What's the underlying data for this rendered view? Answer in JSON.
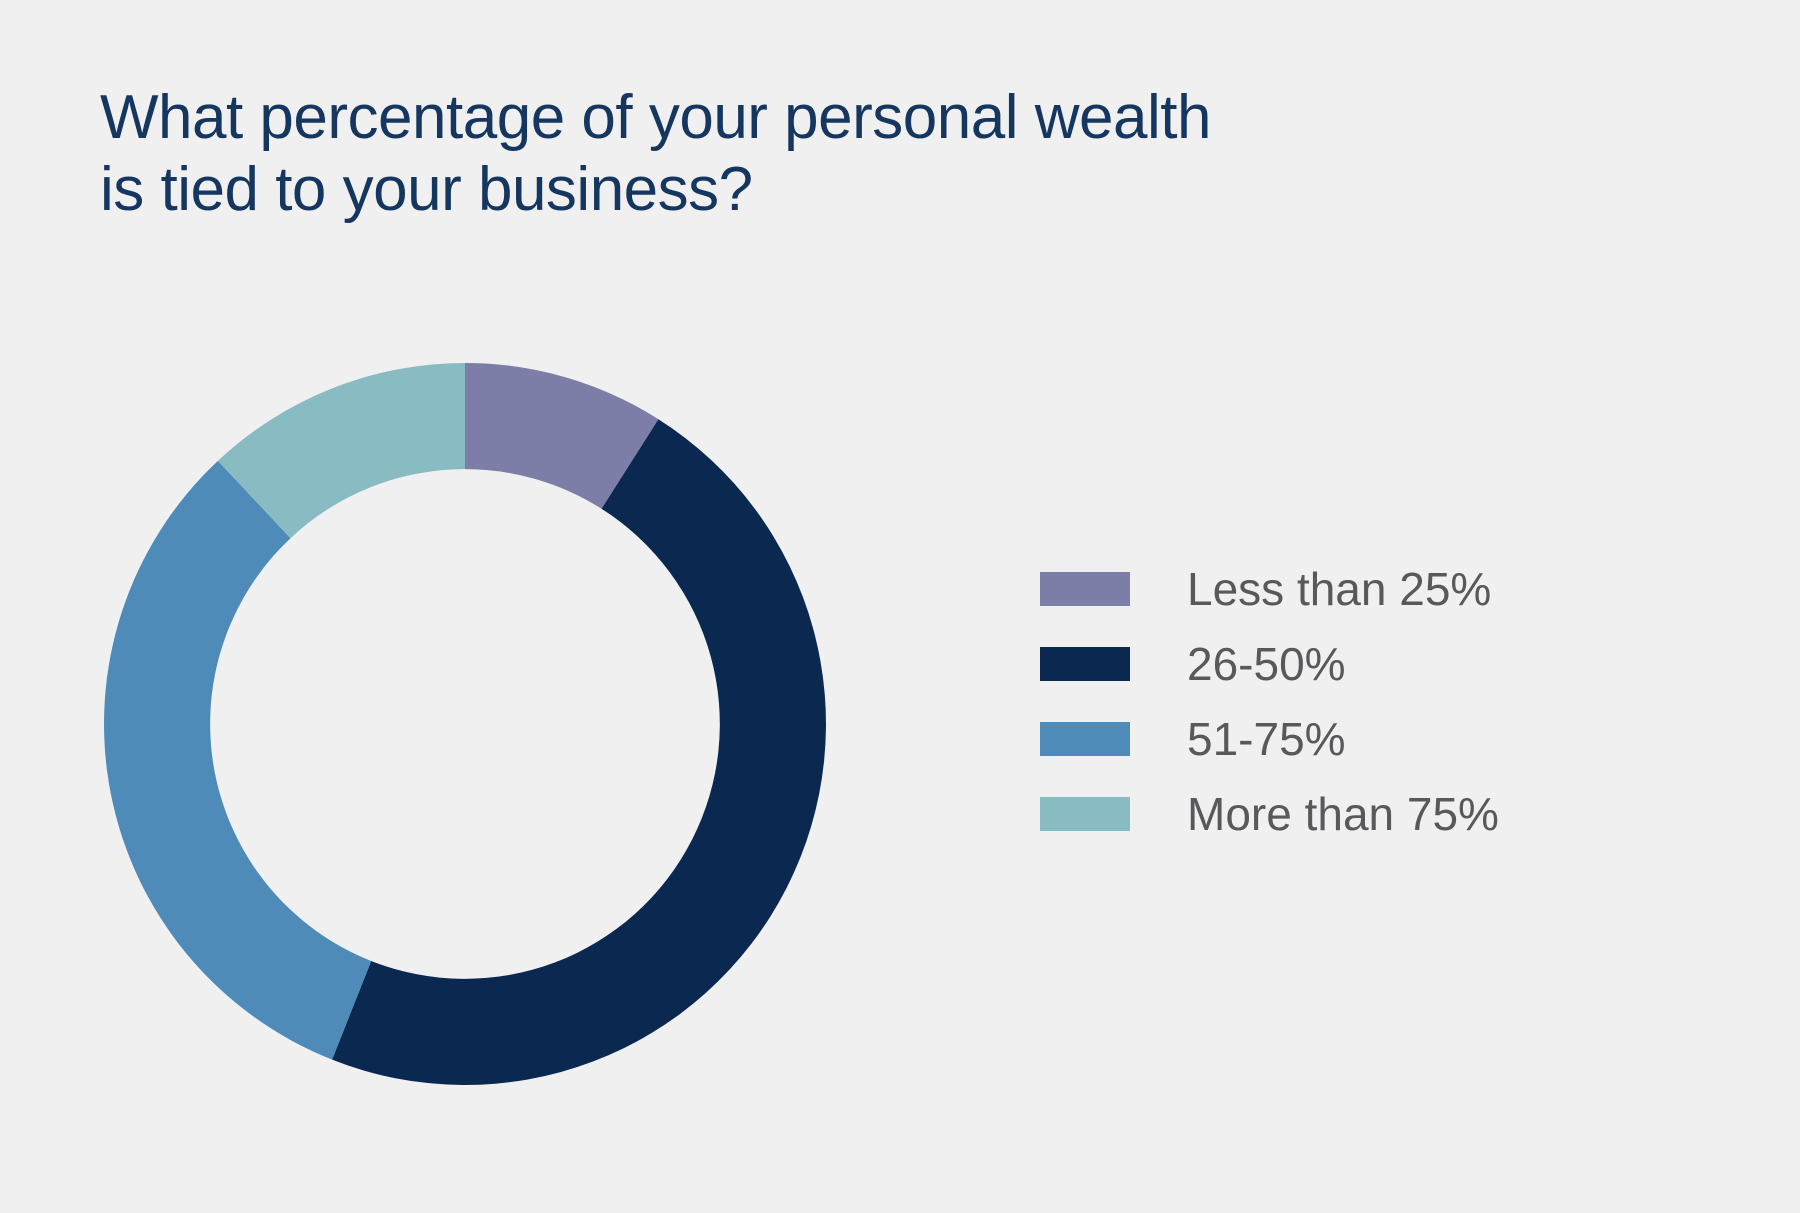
{
  "page": {
    "background_color": "#f0f0f1"
  },
  "title": {
    "lines": [
      "What percentage of your personal wealth",
      "is tied to your business?"
    ],
    "color": "#15365e"
  },
  "chart_data": {
    "type": "pie",
    "subtype": "donut",
    "title": "What percentage of your personal wealth is tied to your business?",
    "categories": [
      "Less than 25%",
      "26-50%",
      "51-75%",
      "More than 75%"
    ],
    "values": [
      9,
      47,
      32,
      12
    ],
    "unit": "percent",
    "colors": [
      "#7c7ea8",
      "#0b2950",
      "#4e8bb9",
      "#89bcc2"
    ],
    "start_angle_deg": 0,
    "direction": "clockwise",
    "inner_radius_ratio": 0.706,
    "legend_position": "right",
    "legend_text_color": "#58595b",
    "data_labels": "none"
  }
}
